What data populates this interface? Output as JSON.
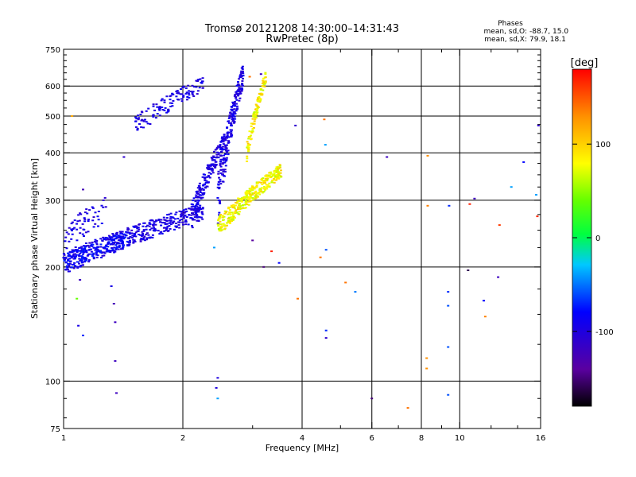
{
  "chart_data": {
    "type": "scatter",
    "title": "Tromsø 20121208 14:30:00–14:31:43",
    "subtitle": "RwPretec (8p)",
    "stats": {
      "heading": "Phases",
      "line1_label": "mean, sd,O:",
      "line1_values": "-88.7, 15.0",
      "line2_label": "mean, sd,X:",
      "line2_values": "79.9, 18.1"
    },
    "xlabel": "Frequency [MHz]",
    "ylabel": "Stationary phase Virtual Height [km]",
    "x_scale": "log",
    "y_scale": "log",
    "xlim": [
      1,
      16
    ],
    "ylim": [
      75,
      750
    ],
    "x_ticks": [
      1,
      2,
      4,
      6,
      8,
      10,
      16
    ],
    "x_tick_labels": [
      "1",
      "2",
      "4",
      "6",
      "8",
      "10",
      "16"
    ],
    "x_minor_ticks": [
      3,
      5,
      7,
      9,
      12,
      14
    ],
    "y_ticks": [
      75,
      100,
      200,
      300,
      400,
      500,
      600,
      750
    ],
    "y_tick_labels": [
      "75",
      "100",
      "200",
      "300",
      "400",
      "500",
      "600",
      "750"
    ],
    "y_minor_ticks": [
      80,
      90,
      125,
      150,
      175,
      225,
      250,
      275,
      325,
      350,
      375,
      425,
      450,
      475,
      525,
      550,
      575,
      625,
      650,
      675,
      700,
      725
    ],
    "grid_x": [
      2,
      4,
      6,
      8,
      10
    ],
    "grid_y": [
      100,
      200,
      300,
      400,
      500,
      600
    ],
    "colorbar": {
      "label": "[deg]",
      "range": [
        -180,
        180
      ],
      "ticks": [
        100,
        0,
        -100
      ],
      "tick_labels": [
        "100",
        "0",
        "-100"
      ]
    },
    "point_groups": [
      {
        "name": "O-trace lower F",
        "phase_range": [
          -110,
          -85
        ],
        "x_range": [
          1.0,
          2.25
        ],
        "h_start": 205,
        "h_end": 280,
        "width": 28,
        "n": 450
      },
      {
        "name": "O-trace low-band blue",
        "phase_range": [
          -90,
          -70
        ],
        "x_range": [
          1.0,
          1.45
        ],
        "h_start": 205,
        "h_end": 240,
        "width": 20,
        "n": 130
      },
      {
        "name": "O-trace scattered upper",
        "phase_range": [
          -110,
          -85
        ],
        "x_range": [
          1.0,
          1.3
        ],
        "h_start": 235,
        "h_end": 290,
        "width": 45,
        "n": 60
      },
      {
        "name": "O-trace F2 cusp",
        "phase_range": [
          -110,
          -85
        ],
        "x_range": [
          2.1,
          2.55
        ],
        "h_start": 270,
        "h_end": 430,
        "width": 45,
        "n": 180
      },
      {
        "name": "O-trace high echoes",
        "phase_range": [
          -110,
          -85
        ],
        "x_range": [
          1.5,
          2.25
        ],
        "h_start": 470,
        "h_end": 610,
        "width": 55,
        "n": 120
      },
      {
        "name": "O-trace 2.4-2.8 MHz column",
        "phase_range": [
          -110,
          -85
        ],
        "x_range": [
          2.45,
          2.85
        ],
        "h_start": 300,
        "h_end": 650,
        "width": 90,
        "n": 220
      },
      {
        "name": "X-trace",
        "phase_range": [
          60,
          105
        ],
        "x_range": [
          2.45,
          3.55
        ],
        "h_start": 255,
        "h_end": 360,
        "width": 30,
        "n": 330
      },
      {
        "name": "X-trace high echoes",
        "phase_range": [
          60,
          110
        ],
        "x_range": [
          2.9,
          3.25
        ],
        "h_start": 400,
        "h_end": 640,
        "width": 45,
        "n": 120
      }
    ],
    "sparse_points": [
      {
        "x": 1.05,
        "y": 500,
        "p": 120
      },
      {
        "x": 1.12,
        "y": 320,
        "p": -125
      },
      {
        "x": 1.1,
        "y": 185,
        "p": -120
      },
      {
        "x": 1.08,
        "y": 165,
        "p": 40
      },
      {
        "x": 1.09,
        "y": 140,
        "p": -95
      },
      {
        "x": 1.12,
        "y": 132,
        "p": -70
      },
      {
        "x": 1.32,
        "y": 178,
        "p": -95
      },
      {
        "x": 1.34,
        "y": 160,
        "p": -125
      },
      {
        "x": 1.35,
        "y": 143,
        "p": -120
      },
      {
        "x": 1.35,
        "y": 113,
        "p": -120
      },
      {
        "x": 1.36,
        "y": 93,
        "p": -120
      },
      {
        "x": 1.42,
        "y": 390,
        "p": -110
      },
      {
        "x": 2.4,
        "y": 225,
        "p": -40
      },
      {
        "x": 2.45,
        "y": 102,
        "p": -100
      },
      {
        "x": 2.43,
        "y": 96,
        "p": -100
      },
      {
        "x": 2.45,
        "y": 90,
        "p": -40
      },
      {
        "x": 3.0,
        "y": 235,
        "p": -140
      },
      {
        "x": 3.35,
        "y": 220,
        "p": 170
      },
      {
        "x": 3.2,
        "y": 200,
        "p": -150
      },
      {
        "x": 3.5,
        "y": 205,
        "p": -80
      },
      {
        "x": 3.85,
        "y": 472,
        "p": -110
      },
      {
        "x": 3.9,
        "y": 165,
        "p": 140
      },
      {
        "x": 4.55,
        "y": 490,
        "p": 140
      },
      {
        "x": 4.58,
        "y": 420,
        "p": -40
      },
      {
        "x": 4.45,
        "y": 212,
        "p": 140
      },
      {
        "x": 4.6,
        "y": 222,
        "p": -60
      },
      {
        "x": 4.6,
        "y": 136,
        "p": -70
      },
      {
        "x": 4.6,
        "y": 130,
        "p": -110
      },
      {
        "x": 5.15,
        "y": 182,
        "p": 140
      },
      {
        "x": 5.45,
        "y": 172,
        "p": -50
      },
      {
        "x": 6.0,
        "y": 90,
        "p": -150
      },
      {
        "x": 6.55,
        "y": 390,
        "p": -120
      },
      {
        "x": 7.4,
        "y": 85,
        "p": 140
      },
      {
        "x": 8.3,
        "y": 393,
        "p": 130
      },
      {
        "x": 8.3,
        "y": 290,
        "p": 135
      },
      {
        "x": 8.25,
        "y": 115,
        "p": 130
      },
      {
        "x": 8.25,
        "y": 108,
        "p": 130
      },
      {
        "x": 9.35,
        "y": 172,
        "p": -70
      },
      {
        "x": 9.35,
        "y": 158,
        "p": -60
      },
      {
        "x": 9.35,
        "y": 123,
        "p": -60
      },
      {
        "x": 9.35,
        "y": 92,
        "p": -60
      },
      {
        "x": 9.4,
        "y": 290,
        "p": -70
      },
      {
        "x": 10.5,
        "y": 196,
        "p": -160
      },
      {
        "x": 10.6,
        "y": 293,
        "p": 170
      },
      {
        "x": 10.9,
        "y": 303,
        "p": -120
      },
      {
        "x": 11.5,
        "y": 163,
        "p": -80
      },
      {
        "x": 11.6,
        "y": 148,
        "p": 135
      },
      {
        "x": 12.5,
        "y": 188,
        "p": -120
      },
      {
        "x": 12.6,
        "y": 258,
        "p": 160
      },
      {
        "x": 13.5,
        "y": 325,
        "p": -40
      },
      {
        "x": 14.5,
        "y": 378,
        "p": -80
      },
      {
        "x": 15.6,
        "y": 310,
        "p": -40
      },
      {
        "x": 15.7,
        "y": 272,
        "p": 165
      },
      {
        "x": 15.8,
        "y": 472,
        "p": -110
      },
      {
        "x": 3.15,
        "y": 645,
        "p": -120
      },
      {
        "x": 2.95,
        "y": 635,
        "p": 140
      }
    ]
  }
}
